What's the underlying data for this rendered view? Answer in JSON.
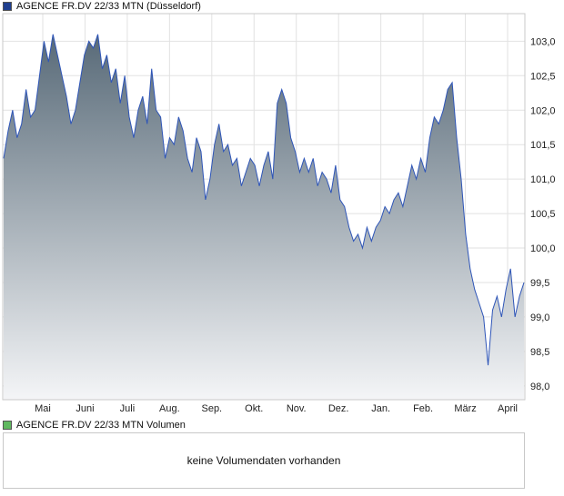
{
  "price_panel": {
    "legend_label": "AGENCE FR.DV 22/33 MTN (Düsseldorf)",
    "legend_color": "#1f3f8f"
  },
  "volume_panel": {
    "legend_label": "AGENCE FR.DV 22/33 MTN Volumen",
    "legend_color": "#5fb85f",
    "empty_message": "keine Volumendaten vorhanden"
  },
  "colors": {
    "line": "#2e55b8",
    "fill_top": "#586a78",
    "fill_bottom": "#f4f5f7",
    "grid": "#e2e2e2",
    "frame": "#c8c8c8"
  },
  "chart_data": {
    "type": "area",
    "title": "AGENCE FR.DV 22/33 MTN (Düsseldorf)",
    "ylim": [
      97.8,
      103.4
    ],
    "y_axis_position": "right",
    "y_ticks": [
      "98,0",
      "98,5",
      "99,0",
      "99,5",
      "100,0",
      "100,5",
      "101,0",
      "101,5",
      "102,0",
      "102,5",
      "103,0"
    ],
    "x_tick_labels": [
      "Mai",
      "Juni",
      "Juli",
      "Aug.",
      "Sep.",
      "Okt.",
      "Nov.",
      "Dez.",
      "Jan.",
      "Feb.",
      "März",
      "April"
    ],
    "grid": true,
    "series": [
      {
        "values": [
          101.3,
          101.7,
          102.0,
          101.6,
          101.8,
          102.3,
          101.9,
          102.0,
          102.5,
          103.0,
          102.7,
          103.1,
          102.8,
          102.5,
          102.2,
          101.8,
          102.0,
          102.4,
          102.8,
          103.0,
          102.9,
          103.1,
          102.6,
          102.8,
          102.4,
          102.6,
          102.1,
          102.5,
          101.9,
          101.6,
          102.0,
          102.2,
          101.8,
          102.6,
          102.0,
          101.9,
          101.3,
          101.6,
          101.5,
          101.9,
          101.7,
          101.3,
          101.1,
          101.6,
          101.4,
          100.7,
          101.0,
          101.5,
          101.8,
          101.4,
          101.5,
          101.2,
          101.3,
          100.9,
          101.1,
          101.3,
          101.2,
          100.9,
          101.2,
          101.4,
          101.0,
          102.1,
          102.3,
          102.1,
          101.6,
          101.4,
          101.1,
          101.3,
          101.1,
          101.3,
          100.9,
          101.1,
          101.0,
          100.8,
          101.2,
          100.7,
          100.6,
          100.3,
          100.1,
          100.2,
          100.0,
          100.3,
          100.1,
          100.3,
          100.4,
          100.6,
          100.5,
          100.7,
          100.8,
          100.6,
          100.9,
          101.2,
          101.0,
          101.3,
          101.1,
          101.6,
          101.9,
          101.8,
          102.0,
          102.3,
          102.4,
          101.6,
          101.0,
          100.2,
          99.7,
          99.4,
          99.2,
          99.0,
          98.3,
          99.1,
          99.3,
          99.0,
          99.4,
          99.7,
          99.0,
          99.3,
          99.5
        ]
      }
    ]
  }
}
